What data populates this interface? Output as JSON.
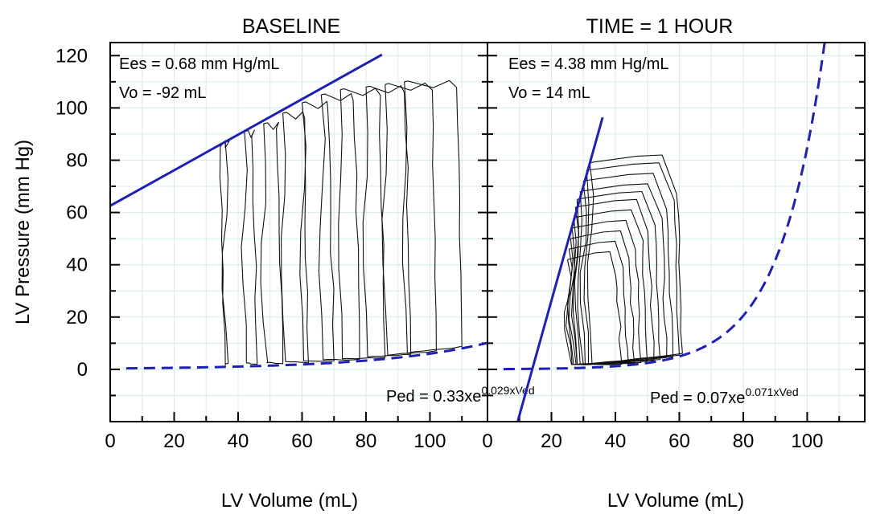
{
  "chart_data": [
    {
      "type": "line",
      "title": "BASELINE",
      "xlabel": "LV Volume (mL)",
      "ylabel": "LV Pressure (mm Hg)",
      "xlim": [
        0,
        118
      ],
      "ylim": [
        -20,
        125
      ],
      "x_ticks": [
        0,
        20,
        40,
        60,
        80,
        100
      ],
      "y_ticks": [
        0,
        20,
        40,
        60,
        80,
        100,
        120
      ],
      "grid": true,
      "annotations": {
        "ees": "Ees = 0.68 mm Hg/mL",
        "vo": "Vo = -92 mL",
        "ped_base": "Ped = 0.33xe",
        "ped_exp": "0.029xVed"
      },
      "espvr": {
        "name": "ESPVR",
        "slope": 0.68,
        "v0": -92,
        "x": [
          0,
          85
        ]
      },
      "edpvr": {
        "name": "EDPVR",
        "a": 0.33,
        "b": 0.029,
        "x": [
          5,
          118
        ]
      },
      "loops": [
        {
          "ved": 36,
          "ves": 36,
          "pes": 87
        },
        {
          "ved": 46,
          "ves": 42,
          "pes": 91
        },
        {
          "ved": 54,
          "ves": 48,
          "pes": 94
        },
        {
          "ved": 62,
          "ves": 54,
          "pes": 98
        },
        {
          "ved": 70,
          "ves": 60,
          "pes": 102
        },
        {
          "ved": 78,
          "ves": 66,
          "pes": 105
        },
        {
          "ved": 86,
          "ves": 72,
          "pes": 107
        },
        {
          "ved": 94,
          "ves": 80,
          "pes": 108
        },
        {
          "ved": 102,
          "ves": 86,
          "pes": 109
        },
        {
          "ved": 110,
          "ves": 92,
          "pes": 110
        }
      ]
    },
    {
      "type": "line",
      "title": "TIME = 1 HOUR",
      "xlabel": "LV Volume (mL)",
      "ylabel": "",
      "xlim": [
        0,
        118
      ],
      "ylim": [
        -20,
        125
      ],
      "x_ticks": [
        0,
        20,
        40,
        60,
        80,
        100
      ],
      "y_ticks": [],
      "grid": true,
      "annotations": {
        "ees": "Ees = 4.38 mm Hg/mL",
        "vo": "Vo = 14 mL",
        "ped_base": "Ped = 0.07xe",
        "ped_exp": "0.071xVed"
      },
      "espvr": {
        "name": "ESPVR",
        "slope": 4.38,
        "v0": 14,
        "x": [
          9.5,
          36
        ]
      },
      "edpvr": {
        "name": "EDPVR",
        "a": 0.07,
        "b": 0.071,
        "x": [
          5,
          106
        ]
      },
      "loops": [
        {
          "ved": 42,
          "ves": 25,
          "pes": 42
        },
        {
          "ved": 44,
          "ves": 25.5,
          "pes": 46
        },
        {
          "ved": 46,
          "ves": 26,
          "pes": 50
        },
        {
          "ved": 48,
          "ves": 26.5,
          "pes": 54
        },
        {
          "ved": 50,
          "ves": 27,
          "pes": 58
        },
        {
          "ved": 52,
          "ves": 27.5,
          "pes": 62
        },
        {
          "ved": 54,
          "ves": 28,
          "pes": 65
        },
        {
          "ved": 56,
          "ves": 29,
          "pes": 68
        },
        {
          "ved": 58,
          "ves": 30,
          "pes": 72
        },
        {
          "ved": 60,
          "ves": 31,
          "pes": 76
        },
        {
          "ved": 61,
          "ves": 32,
          "pes": 79
        }
      ]
    }
  ]
}
